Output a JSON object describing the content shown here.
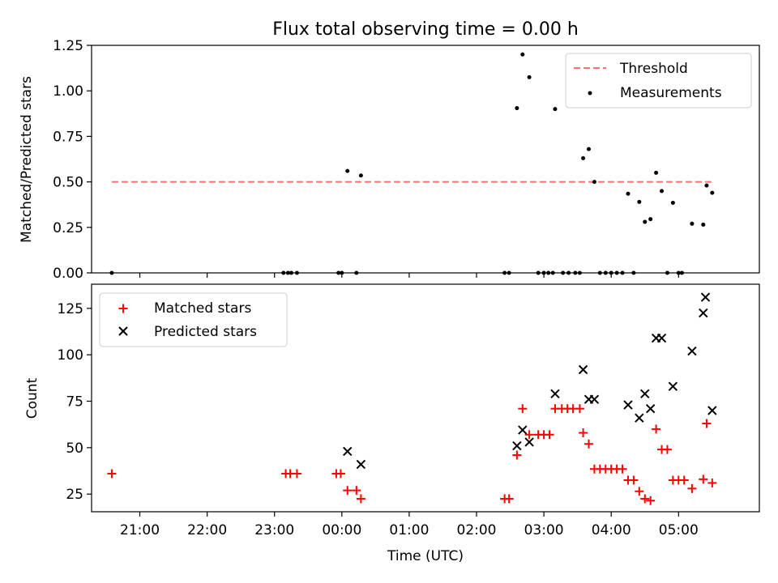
{
  "chart_data": [
    {
      "type": "scatter",
      "title": "Flux total observing time = 0.00 h",
      "ylabel": "Matched/Predicted stars",
      "xlabel": "",
      "xlim": [
        "20:17",
        "06:12"
      ],
      "ylim": [
        0,
        1.25
      ],
      "yticks": [
        0.0,
        0.25,
        0.5,
        0.75,
        1.0,
        1.25
      ],
      "ytick_labels": [
        "0.00",
        "0.25",
        "0.50",
        "0.75",
        "1.00",
        "1.25"
      ],
      "grid": false,
      "legend_position": "top-right",
      "threshold": {
        "name": "Threshold",
        "value": 0.5,
        "x_range": [
          "20:35",
          "05:30"
        ],
        "color": "#ff7070",
        "style": "dashed"
      },
      "series": [
        {
          "name": "Measurements",
          "marker": "dot",
          "color": "#000000",
          "points": [
            [
              "20:35",
              0.0
            ],
            [
              "23:08",
              0.0
            ],
            [
              "23:12",
              0.0
            ],
            [
              "23:15",
              0.0
            ],
            [
              "23:20",
              0.0
            ],
            [
              "23:57",
              0.0
            ],
            [
              "00:00",
              0.0
            ],
            [
              "00:05",
              0.56
            ],
            [
              "00:13",
              0.0
            ],
            [
              "00:17",
              0.535
            ],
            [
              "02:25",
              0.0
            ],
            [
              "02:29",
              0.0
            ],
            [
              "02:36",
              0.905
            ],
            [
              "02:41",
              1.2
            ],
            [
              "02:47",
              1.075
            ],
            [
              "02:55",
              0.0
            ],
            [
              "03:00",
              0.0
            ],
            [
              "03:04",
              0.0
            ],
            [
              "03:08",
              0.0
            ],
            [
              "03:10",
              0.9
            ],
            [
              "03:17",
              0.0
            ],
            [
              "03:22",
              0.0
            ],
            [
              "03:28",
              0.0
            ],
            [
              "03:32",
              0.0
            ],
            [
              "03:35",
              0.63
            ],
            [
              "03:40",
              0.68
            ],
            [
              "03:45",
              0.5
            ],
            [
              "03:50",
              0.0
            ],
            [
              "03:55",
              0.0
            ],
            [
              "04:00",
              0.0
            ],
            [
              "04:05",
              0.0
            ],
            [
              "04:10",
              0.0
            ],
            [
              "04:15",
              0.435
            ],
            [
              "04:20",
              0.0
            ],
            [
              "04:25",
              0.39
            ],
            [
              "04:30",
              0.28
            ],
            [
              "04:35",
              0.295
            ],
            [
              "04:40",
              0.55
            ],
            [
              "04:45",
              0.45
            ],
            [
              "04:50",
              0.0
            ],
            [
              "04:55",
              0.385
            ],
            [
              "05:00",
              0.0
            ],
            [
              "05:03",
              0.0
            ],
            [
              "05:12",
              0.27
            ],
            [
              "05:22",
              0.265
            ],
            [
              "05:25",
              0.48
            ],
            [
              "05:30",
              0.44
            ]
          ]
        }
      ]
    },
    {
      "type": "scatter",
      "title": "",
      "ylabel": "Count",
      "xlabel": "Time (UTC)",
      "xlim": [
        "20:17",
        "06:12"
      ],
      "ylim": [
        15.5,
        138
      ],
      "yticks": [
        25,
        50,
        75,
        100,
        125
      ],
      "ytick_labels": [
        "25",
        "50",
        "75",
        "100",
        "125"
      ],
      "xticks": [
        "21:00",
        "22:00",
        "23:00",
        "00:00",
        "01:00",
        "02:00",
        "03:00",
        "04:00",
        "05:00"
      ],
      "grid": false,
      "legend_position": "top-left",
      "series": [
        {
          "name": "Matched stars",
          "marker": "plus",
          "color": "#ff0000",
          "points": [
            [
              "20:35",
              36
            ],
            [
              "23:10",
              36
            ],
            [
              "23:14",
              36
            ],
            [
              "23:20",
              36
            ],
            [
              "23:55",
              36
            ],
            [
              "23:59",
              36
            ],
            [
              "00:05",
              27
            ],
            [
              "00:13",
              27
            ],
            [
              "00:17",
              22.5
            ],
            [
              "02:25",
              22.5
            ],
            [
              "02:29",
              22.5
            ],
            [
              "02:36",
              46
            ],
            [
              "02:41",
              71
            ],
            [
              "02:47",
              57
            ],
            [
              "02:55",
              57
            ],
            [
              "03:00",
              57
            ],
            [
              "03:05",
              57
            ],
            [
              "03:10",
              71
            ],
            [
              "03:16",
              71
            ],
            [
              "03:21",
              71
            ],
            [
              "03:26",
              71
            ],
            [
              "03:32",
              71
            ],
            [
              "03:35",
              58
            ],
            [
              "03:40",
              52
            ],
            [
              "03:45",
              38.5
            ],
            [
              "03:50",
              38.5
            ],
            [
              "03:55",
              38.5
            ],
            [
              "04:00",
              38.5
            ],
            [
              "04:05",
              38.5
            ],
            [
              "04:10",
              38.5
            ],
            [
              "04:15",
              32.5
            ],
            [
              "04:20",
              32.5
            ],
            [
              "04:25",
              26.5
            ],
            [
              "04:30",
              22.5
            ],
            [
              "04:35",
              21.5
            ],
            [
              "04:40",
              60
            ],
            [
              "04:45",
              49
            ],
            [
              "04:50",
              49
            ],
            [
              "04:55",
              32.5
            ],
            [
              "05:00",
              32.5
            ],
            [
              "05:05",
              32.5
            ],
            [
              "05:12",
              28
            ],
            [
              "05:22",
              33
            ],
            [
              "05:25",
              63
            ],
            [
              "05:30",
              31
            ]
          ]
        },
        {
          "name": "Predicted stars",
          "marker": "x",
          "color": "#000000",
          "points": [
            [
              "00:05",
              48
            ],
            [
              "00:17",
              41
            ],
            [
              "02:36",
              51
            ],
            [
              "02:41",
              59.5
            ],
            [
              "02:47",
              53
            ],
            [
              "03:10",
              79
            ],
            [
              "03:35",
              92
            ],
            [
              "03:40",
              76
            ],
            [
              "03:45",
              76
            ],
            [
              "04:15",
              73
            ],
            [
              "04:25",
              66
            ],
            [
              "04:30",
              79
            ],
            [
              "04:35",
              71
            ],
            [
              "04:40",
              109
            ],
            [
              "04:45",
              109
            ],
            [
              "04:55",
              83
            ],
            [
              "05:12",
              102
            ],
            [
              "05:22",
              122.5
            ],
            [
              "05:24",
              131
            ],
            [
              "05:30",
              70
            ]
          ]
        }
      ]
    }
  ]
}
